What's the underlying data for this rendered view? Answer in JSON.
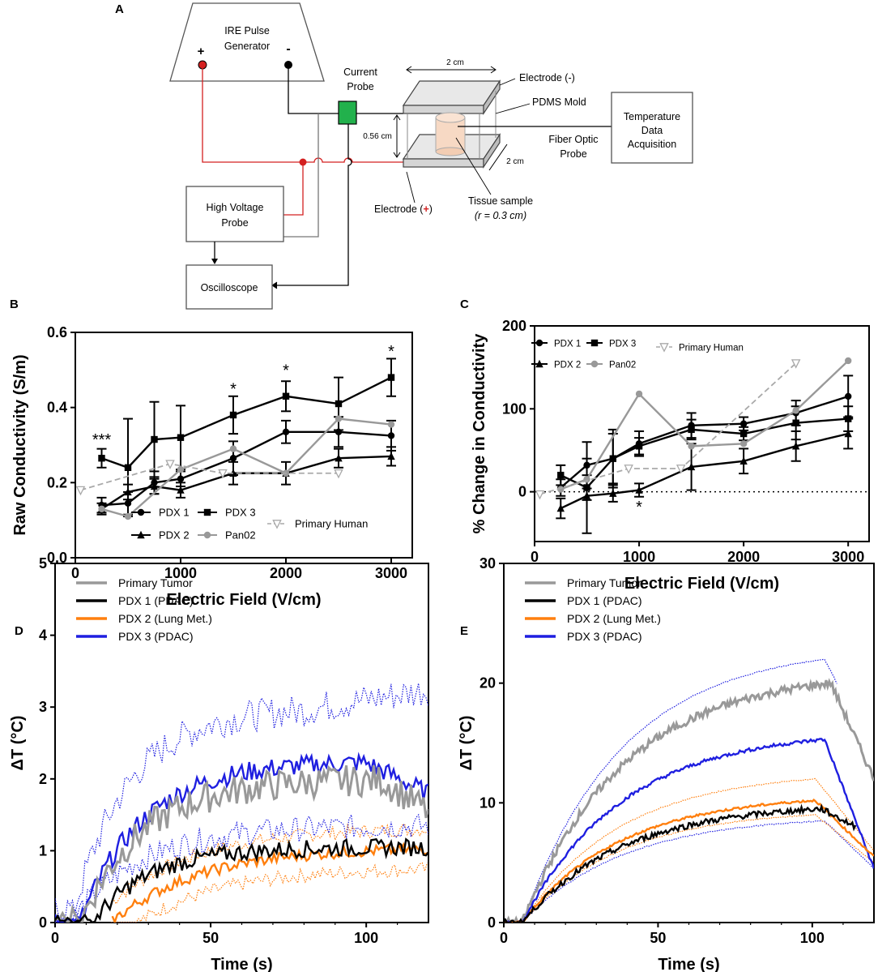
{
  "colors": {
    "black": "#000000",
    "red": "#d42020",
    "green": "#22b14c",
    "grey": "#999999",
    "dashgrey": "#a9a9a9",
    "orange": "#ff7f0e",
    "blue": "#1f1fe0",
    "tissue": "#f7d9c4"
  },
  "diagram": {
    "letter": "A",
    "generator": "IRE Pulse\nGenerator",
    "plus": "+",
    "minus": "-",
    "current_probe": "Current\nProbe",
    "width_top": "2 cm",
    "electrode_neg": "Electrode (-)",
    "pdms": "PDMS Mold",
    "gap": "0.56 cm",
    "fiber": "Fiber Optic\nProbe",
    "width_side": "2 cm",
    "temp": "Temperature\nData\nAcquisition",
    "hv_probe": "High Voltage\nProbe",
    "electrode_pos": "Electrode (",
    "electrode_pos_sign": "+",
    "electrode_pos_end": ")",
    "tissue": "Tissue sample",
    "radius": "(r = 0.3 cm)",
    "oscilloscope": "Oscilloscope"
  },
  "chart_data": [
    {
      "id": "B",
      "type": "line",
      "letter": "B",
      "xlabel": "Electric Field (V/cm)",
      "ylabel": "Raw Conductivity (S/m)",
      "xlim": [
        0,
        3200
      ],
      "ylim": [
        0,
        0.6
      ],
      "xticks": [
        0,
        1000,
        2000,
        3000
      ],
      "yticks": [
        0.0,
        0.2,
        0.4,
        0.6
      ],
      "ytick_labels": [
        "0.0",
        "0.2",
        "0.4",
        "0.6"
      ],
      "series": [
        {
          "name": "PDX 1",
          "color": "#000000",
          "marker": "circle",
          "x": [
            250,
            500,
            750,
            1000,
            1500,
            2000,
            2500,
            3000
          ],
          "y": [
            0.14,
            0.145,
            0.2,
            0.21,
            0.265,
            0.335,
            0.335,
            0.325
          ],
          "err": [
            0.02,
            0.03,
            0.03,
            0.02,
            0.045,
            0.03,
            0.04,
            0.04
          ]
        },
        {
          "name": "PDX 2",
          "color": "#000000",
          "marker": "triangle",
          "x": [
            250,
            500,
            750,
            1000,
            1500,
            2000,
            2500,
            3000
          ],
          "y": [
            0.13,
            0.175,
            0.19,
            0.18,
            0.225,
            0.225,
            0.265,
            0.27
          ],
          "err": [
            0.015,
            0.02,
            0.02,
            0.02,
            0.03,
            0.03,
            0.025,
            0.025
          ]
        },
        {
          "name": "PDX 3",
          "color": "#000000",
          "marker": "square",
          "x": [
            250,
            500,
            750,
            1000,
            1500,
            2000,
            2500,
            3000
          ],
          "y": [
            0.265,
            0.24,
            0.315,
            0.32,
            0.38,
            0.43,
            0.41,
            0.48
          ],
          "err": [
            0.025,
            0.13,
            0.1,
            0.085,
            0.05,
            0.04,
            0.07,
            0.05
          ]
        },
        {
          "name": "Pan02",
          "color": "#999999",
          "marker": "circle",
          "x": [
            250,
            500,
            1000,
            1500,
            2000,
            2500,
            3000
          ],
          "y": [
            0.13,
            0.11,
            0.235,
            0.29,
            0.225,
            0.37,
            0.355
          ],
          "err": [
            0,
            0,
            0,
            0,
            0,
            0,
            0
          ]
        },
        {
          "name": "Primary Human",
          "color": "#a9a9a9",
          "marker": "triangle-down",
          "dashed": true,
          "x": [
            50,
            900,
            1400,
            2500
          ],
          "y": [
            0.18,
            0.25,
            0.225,
            0.225
          ],
          "err": [
            0,
            0,
            0,
            0
          ]
        }
      ],
      "annotations": [
        {
          "text": "***",
          "x": 250,
          "y": 0.3
        },
        {
          "text": "*",
          "x": 1500,
          "y": 0.435
        },
        {
          "text": "*",
          "x": 2000,
          "y": 0.485
        },
        {
          "text": "*",
          "x": 3000,
          "y": 0.535
        }
      ],
      "legend": {
        "position": "bottom",
        "labels": [
          "PDX 1",
          "PDX 3",
          "PDX 2",
          "Pan02",
          "Primary Human"
        ]
      }
    },
    {
      "id": "C",
      "type": "line",
      "letter": "C",
      "xlabel": "Electric Field (V/cm)",
      "ylabel": "% Change in Conductivity",
      "xlim": [
        0,
        3200
      ],
      "ylim": [
        -60,
        200
      ],
      "xticks": [
        0,
        1000,
        2000,
        3000
      ],
      "yticks": [
        0,
        100,
        200
      ],
      "ytick_labels": [
        "0",
        "100",
        "200"
      ],
      "zero_line": true,
      "series": [
        {
          "name": "PDX 1",
          "color": "#000000",
          "marker": "circle",
          "x": [
            250,
            500,
            750,
            1000,
            1500,
            2000,
            2500,
            3000
          ],
          "y": [
            5,
            32,
            40,
            58,
            80,
            82,
            95,
            115
          ],
          "err": [
            10,
            28,
            30,
            15,
            15,
            8,
            15,
            25
          ]
        },
        {
          "name": "PDX 2",
          "color": "#000000",
          "marker": "triangle",
          "x": [
            250,
            500,
            750,
            1000,
            1500,
            2000,
            2500,
            3000
          ],
          "y": [
            -20,
            -5,
            -2,
            2,
            30,
            37,
            55,
            70
          ],
          "err": [
            12,
            45,
            10,
            8,
            28,
            15,
            18,
            18
          ]
        },
        {
          "name": "PDX 3",
          "color": "#000000",
          "marker": "square",
          "x": [
            250,
            500,
            750,
            1000,
            1500,
            2000,
            2500,
            3000
          ],
          "y": [
            20,
            5,
            40,
            55,
            75,
            70,
            83,
            88
          ],
          "err": [
            12,
            15,
            35,
            10,
            12,
            8,
            20,
            15
          ]
        },
        {
          "name": "Pan02",
          "color": "#999999",
          "marker": "circle",
          "x": [
            250,
            500,
            1000,
            1500,
            2000,
            2500,
            3000
          ],
          "y": [
            3,
            15,
            118,
            55,
            58,
            98,
            158
          ],
          "err": [
            0,
            0,
            0,
            0,
            0,
            0,
            0
          ]
        },
        {
          "name": "Primary Human",
          "color": "#a9a9a9",
          "marker": "triangle-down",
          "dashed": true,
          "x": [
            50,
            900,
            1400,
            2500
          ],
          "y": [
            -3,
            28,
            28,
            155
          ],
          "err": [
            0,
            0,
            0,
            0
          ]
        }
      ],
      "annotations": [
        {
          "text": "*",
          "x": 1000,
          "y": -25
        }
      ],
      "legend": {
        "position": "top-left",
        "labels": [
          "PDX 1",
          "PDX 3",
          "PDX 2",
          "Pan02",
          "Primary Human"
        ]
      }
    },
    {
      "id": "D",
      "type": "line",
      "letter": "D",
      "xlabel": "Time (s)",
      "ylabel": "ΔT (°C)",
      "xlim": [
        0,
        120
      ],
      "ylim": [
        0,
        5
      ],
      "xticks": [
        0,
        50,
        100
      ],
      "yticks": [
        0,
        1,
        2,
        3,
        4,
        5
      ],
      "ytick_labels": [
        "0",
        "1",
        "2",
        "3",
        "4",
        "5"
      ],
      "series": [
        {
          "name": "Primary Tumor",
          "color": "#999999",
          "t0": 8,
          "amp": 2.0,
          "tau": 20,
          "tend": 120,
          "noise": 0.22,
          "drop": 0,
          "start": 0
        },
        {
          "name": "PDX 1 (PDAC)",
          "color": "#000000",
          "t0": 12,
          "amp": 1.05,
          "tau": 18,
          "tend": 120,
          "noise": 0.12,
          "drop": 0,
          "start": 0
        },
        {
          "name": "PDX 2 (Lung Met.)",
          "color": "#ff7f0e",
          "t0": 18,
          "amp": 1.05,
          "tau": 28,
          "tend": 120,
          "noise": 0.08,
          "drop": 0,
          "start": 18
        },
        {
          "name": "PDX 3 (PDAC)",
          "color": "#1f1fe0",
          "t0": 8,
          "amp": 2.25,
          "tau": 20,
          "tend": 120,
          "noise": 0.14,
          "drop": 0,
          "start": 0
        }
      ],
      "bands": [
        {
          "color": "#ff7f0e",
          "t0": 18,
          "amp": 1.05,
          "tau": 28,
          "delta": 0.28,
          "tend": 120
        },
        {
          "color": "#1f1fe0",
          "t0": 5,
          "amp": 3.0,
          "tau": 18,
          "delta": 0.0,
          "tend": 120,
          "single": true
        }
      ],
      "legend": {
        "position": "top-left",
        "labels": [
          "Primary Tumor",
          "PDX 1 (PDAC)",
          "PDX 2 (Lung Met.)",
          "PDX 3 (PDAC)"
        ]
      }
    },
    {
      "id": "E",
      "type": "line",
      "letter": "E",
      "xlabel": "Time (s)",
      "ylabel": "ΔT (°C)",
      "xlim": [
        0,
        120
      ],
      "ylim": [
        0,
        30
      ],
      "xticks": [
        0,
        50,
        100
      ],
      "yticks": [
        0,
        10,
        20,
        30
      ],
      "ytick_labels": [
        "0",
        "10",
        "20",
        "30"
      ],
      "series": [
        {
          "name": "Primary Tumor",
          "color": "#999999",
          "peak": 20,
          "tpeak": 106,
          "tend": 120,
          "endval": 12,
          "noise": 0.35
        },
        {
          "name": "PDX 1 (PDAC)",
          "color": "#000000",
          "peak": 9.5,
          "tpeak": 103,
          "tend": 114,
          "endval": 8,
          "noise": 0.25
        },
        {
          "name": "PDX 2 (Lung Met.)",
          "color": "#ff7f0e",
          "peak": 10.2,
          "tpeak": 101,
          "tend": 120,
          "endval": 5.5,
          "noise": 0.1
        },
        {
          "name": "PDX 3 (PDAC)",
          "color": "#1f1fe0",
          "peak": 15.3,
          "tpeak": 104,
          "tend": 120,
          "endval": 4.5,
          "noise": 0.15
        }
      ],
      "bands": [
        {
          "color": "#1f1fe0",
          "peak": 22,
          "tpeak": 104,
          "tend": 108,
          "endval": 20
        },
        {
          "color": "#1f1fe0",
          "peak": 8.5,
          "tpeak": 104,
          "tend": 120,
          "endval": 4.5
        },
        {
          "color": "#ff7f0e",
          "peak": 12,
          "tpeak": 101,
          "tend": 120,
          "endval": 6
        },
        {
          "color": "#ff7f0e",
          "peak": 9,
          "tpeak": 101,
          "tend": 120,
          "endval": 5
        }
      ],
      "legend": {
        "position": "top-left",
        "labels": [
          "Primary Tumor",
          "PDX 1 (PDAC)",
          "PDX 2 (Lung Met.)",
          "PDX 3 (PDAC)"
        ]
      }
    }
  ]
}
